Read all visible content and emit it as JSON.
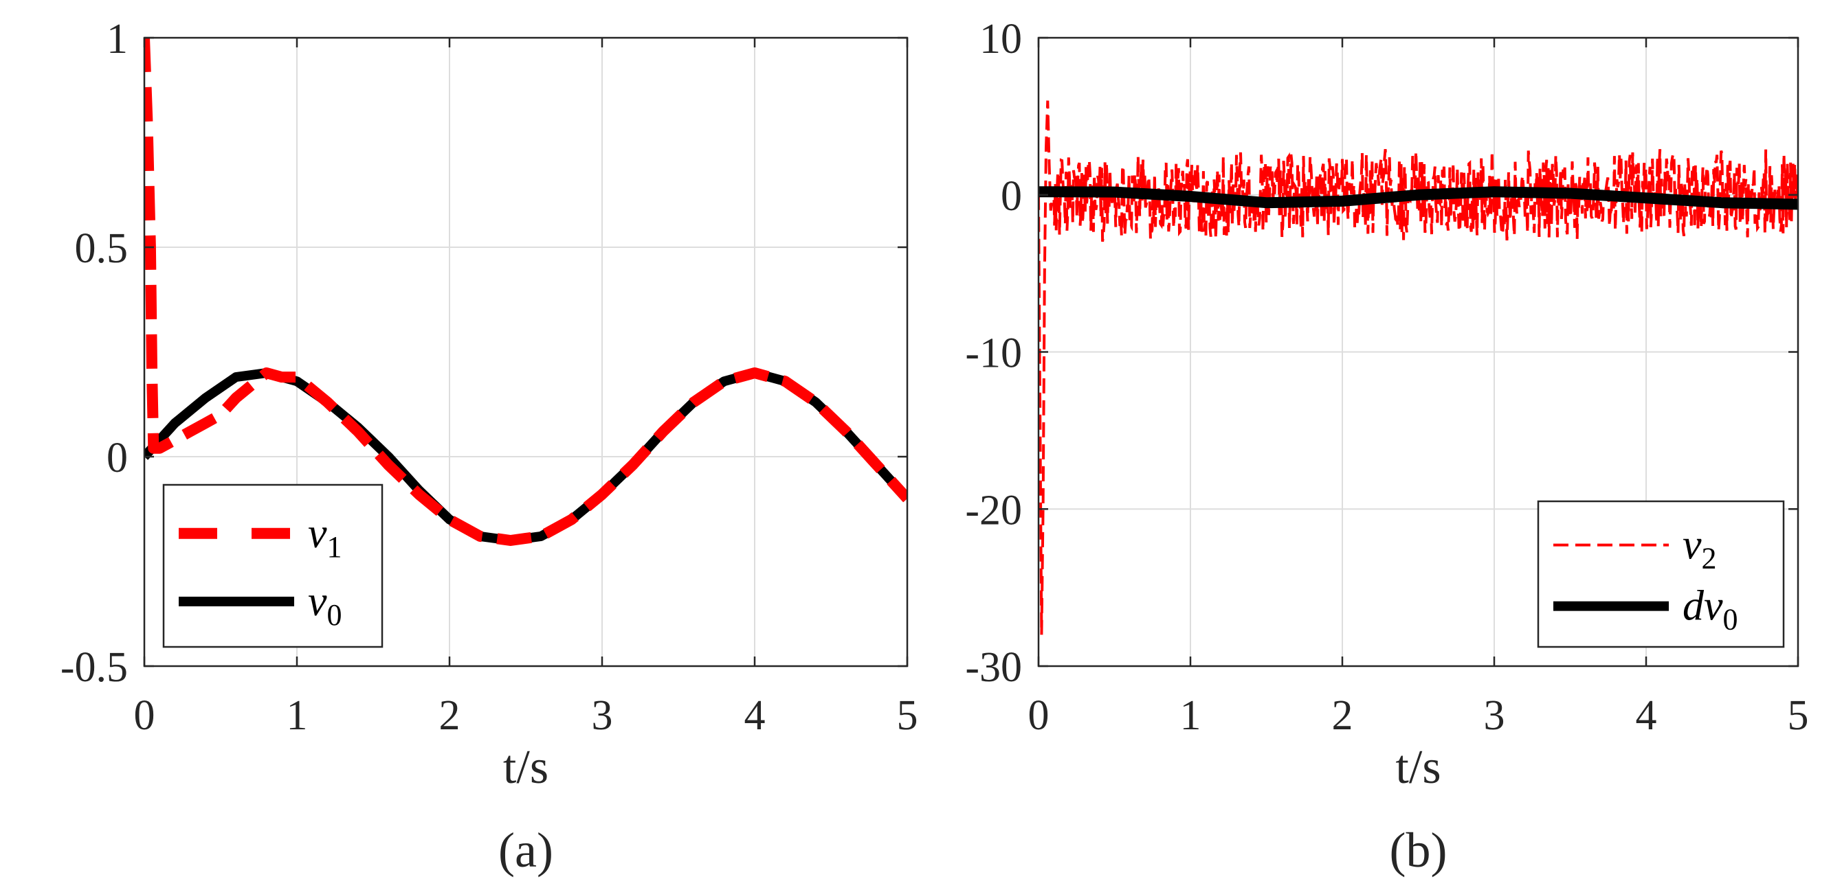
{
  "chart_data": [
    {
      "type": "line",
      "caption": "(a)",
      "xlabel": "t/s",
      "ylabel": "",
      "xlim": [
        0,
        5
      ],
      "ylim": [
        -0.5,
        1
      ],
      "xticks": [
        0,
        1,
        2,
        3,
        4,
        5
      ],
      "xtick_labels": [
        "0",
        "1",
        "2",
        "3",
        "4",
        "5"
      ],
      "yticks": [
        -0.5,
        0,
        0.5,
        1
      ],
      "ytick_labels": [
        "-0.5",
        "0",
        "0.5",
        "1"
      ],
      "grid": true,
      "legend_placement": "bottom-left",
      "legend": [
        {
          "base": "v",
          "sub": "1",
          "color": "#ff0000",
          "style": "dashed"
        },
        {
          "base": "v",
          "sub": "0",
          "color": "#000000",
          "style": "solid"
        }
      ],
      "series": [
        {
          "name": "v1",
          "color": "#ff0000",
          "style": "dashed",
          "x": [
            0.0,
            0.02,
            0.04,
            0.05,
            0.06,
            0.1,
            0.2,
            0.3,
            0.4,
            0.5,
            0.6,
            0.7,
            0.8,
            0.9,
            1.0,
            1.2,
            1.4,
            1.6,
            1.8,
            2.0,
            2.2,
            2.4,
            2.6,
            2.8,
            3.0,
            3.2,
            3.4,
            3.6,
            3.8,
            4.0,
            4.2,
            4.4,
            4.6,
            4.8,
            5.0
          ],
          "y": [
            1.0,
            0.8,
            0.5,
            0.2,
            0.02,
            0.02,
            0.04,
            0.06,
            0.08,
            0.1,
            0.14,
            0.17,
            0.2,
            0.19,
            0.19,
            0.13,
            0.06,
            -0.02,
            -0.09,
            -0.15,
            -0.19,
            -0.2,
            -0.19,
            -0.15,
            -0.09,
            -0.02,
            0.06,
            0.13,
            0.18,
            0.2,
            0.18,
            0.13,
            0.06,
            -0.02,
            -0.1
          ]
        },
        {
          "name": "v0",
          "color": "#000000",
          "style": "solid",
          "x": [
            0.0,
            0.2,
            0.4,
            0.6,
            0.8,
            1.0,
            1.2,
            1.4,
            1.6,
            1.8,
            2.0,
            2.2,
            2.4,
            2.6,
            2.8,
            3.0,
            3.2,
            3.4,
            3.6,
            3.8,
            4.0,
            4.2,
            4.4,
            4.6,
            4.8,
            5.0
          ],
          "y": [
            0.0,
            0.08,
            0.14,
            0.19,
            0.2,
            0.18,
            0.13,
            0.07,
            0.0,
            -0.08,
            -0.15,
            -0.19,
            -0.2,
            -0.19,
            -0.15,
            -0.09,
            -0.02,
            0.06,
            0.13,
            0.18,
            0.2,
            0.18,
            0.13,
            0.06,
            -0.02,
            -0.1
          ]
        }
      ]
    },
    {
      "type": "line",
      "caption": "(b)",
      "xlabel": "t/s",
      "ylabel": "",
      "xlim": [
        0,
        5
      ],
      "ylim": [
        -30,
        10
      ],
      "xticks": [
        0,
        1,
        2,
        3,
        4,
        5
      ],
      "xtick_labels": [
        "0",
        "1",
        "2",
        "3",
        "4",
        "5"
      ],
      "yticks": [
        -30,
        -20,
        -10,
        0,
        10
      ],
      "ytick_labels": [
        "-30",
        "-20",
        "-10",
        "0",
        "10"
      ],
      "grid": true,
      "legend_placement": "bottom-right",
      "legend": [
        {
          "base": "v",
          "sub": "2",
          "color": "#ff0000",
          "style": "dashed"
        },
        {
          "base": "dv",
          "sub": "0",
          "color": "#000000",
          "style": "solid"
        }
      ],
      "series": [
        {
          "name": "v2",
          "color": "#ff0000",
          "style": "dashed",
          "x": [
            0.0,
            0.02,
            0.03,
            0.04,
            0.05,
            0.06,
            0.07,
            0.08,
            0.1
          ],
          "y": [
            0.0,
            -28.0,
            -20.0,
            -5.0,
            3.0,
            6.0,
            2.0,
            -1.0,
            0.5
          ],
          "noise": {
            "from": 0.1,
            "to": 5.0,
            "amplitude_min": 2.0,
            "amplitude_max": 3.0
          }
        },
        {
          "name": "dv0",
          "color": "#000000",
          "style": "solid",
          "x": [
            0.0,
            0.5,
            1.0,
            1.5,
            2.0,
            2.5,
            3.0,
            3.5,
            4.0,
            4.5,
            5.0
          ],
          "y": [
            0.2,
            0.18,
            -0.1,
            -0.5,
            -0.4,
            0.0,
            0.2,
            0.1,
            -0.2,
            -0.5,
            -0.6
          ]
        }
      ]
    }
  ]
}
